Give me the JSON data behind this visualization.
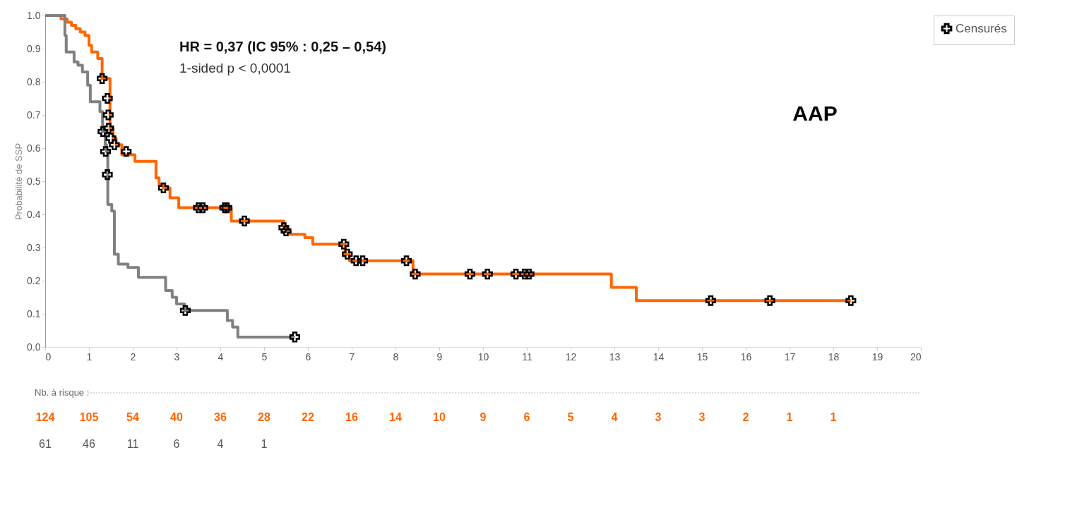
{
  "chart_data": {
    "type": "step",
    "ylabel": "Probabilité de SSP",
    "xlim": [
      0,
      20
    ],
    "xticks": [
      0,
      1,
      2,
      3,
      4,
      5,
      6,
      7,
      8,
      9,
      10,
      11,
      12,
      13,
      14,
      15,
      16,
      17,
      18,
      19,
      20
    ],
    "ylim": [
      0,
      1
    ],
    "yticks": [
      {
        "value": 0,
        "label": "0.0"
      },
      {
        "value": 0.1,
        "label": "0.1"
      },
      {
        "value": 0.2,
        "label": "0.2"
      },
      {
        "value": 0.3,
        "label": "0.3"
      },
      {
        "value": 0.4,
        "label": "0.4"
      },
      {
        "value": 0.5,
        "label": "0.5"
      },
      {
        "value": 0.6,
        "label": "0.6"
      },
      {
        "value": 0.7,
        "label": "0.7"
      },
      {
        "value": 0.8,
        "label": "0.8"
      },
      {
        "value": 0.9,
        "label": "0.9"
      },
      {
        "value": 1,
        "label": "1.0"
      }
    ],
    "grid": false,
    "legend": "right",
    "series": [
      {
        "color": "#ff6600",
        "x": [
          0,
          0.36,
          0.5,
          0.6,
          0.7,
          0.8,
          0.91,
          1.0,
          1.06,
          1.2,
          1.3,
          1.4,
          1.48,
          1.55,
          1.62,
          1.75,
          2.05,
          2.53,
          2.6,
          2.7,
          2.85,
          3.05,
          4.25,
          5.45,
          5.5,
          5.6,
          5.93,
          6.11,
          6.85,
          6.95,
          8.4,
          12.93,
          13.5,
          18.4
        ],
        "values": [
          1.0,
          0.99,
          0.98,
          0.97,
          0.96,
          0.95,
          0.94,
          0.91,
          0.89,
          0.87,
          0.81,
          0.81,
          0.66,
          0.63,
          0.61,
          0.58,
          0.56,
          0.51,
          0.49,
          0.48,
          0.45,
          0.42,
          0.38,
          0.36,
          0.35,
          0.34,
          0.33,
          0.31,
          0.28,
          0.26,
          0.22,
          0.18,
          0.14,
          0.14
        ]
      },
      {
        "color": "#808080",
        "x": [
          0,
          0.45,
          0.48,
          0.66,
          0.75,
          0.85,
          0.97,
          1.03,
          1.25,
          1.31,
          1.37,
          1.4,
          1.43,
          1.52,
          1.58,
          1.67,
          1.89,
          2.13,
          2.75,
          2.9,
          3.0,
          3.18,
          4.16,
          4.28,
          4.4,
          5.7
        ],
        "values": [
          1.0,
          0.94,
          0.89,
          0.86,
          0.85,
          0.83,
          0.79,
          0.74,
          0.71,
          0.65,
          0.61,
          0.59,
          0.43,
          0.41,
          0.28,
          0.25,
          0.24,
          0.21,
          0.17,
          0.15,
          0.13,
          0.11,
          0.08,
          0.06,
          0.03,
          0.03
        ]
      },
      {
        "type": "scatter",
        "name": "Censurés",
        "color": "#000000",
        "marker": "cross",
        "x": [
          1.3,
          1.42,
          1.44,
          1.45,
          1.5,
          1.58,
          1.85,
          2.7,
          3.5,
          3.6,
          4.1,
          4.15,
          4.55,
          5.45,
          5.5,
          6.82,
          6.9,
          7.1,
          7.25,
          8.25,
          8.45,
          9.7,
          10.1,
          10.75,
          10.95,
          11.05,
          15.2,
          16.55,
          18.4,
          1.32,
          1.38,
          1.42,
          3.2,
          5.7
        ],
        "values": [
          0.81,
          0.75,
          0.7,
          0.66,
          0.63,
          0.61,
          0.59,
          0.48,
          0.42,
          0.42,
          0.42,
          0.42,
          0.38,
          0.36,
          0.35,
          0.31,
          0.28,
          0.26,
          0.26,
          0.26,
          0.22,
          0.22,
          0.22,
          0.22,
          0.22,
          0.22,
          0.14,
          0.14,
          0.14,
          0.65,
          0.59,
          0.52,
          0.11,
          0.03
        ]
      }
    ],
    "annotations": [
      "HR = 0,37 (IC 95% : 0,25 – 0,54)",
      "1-sided p < 0,0001",
      "AAP",
      "Nb. à risque :",
      "124 105 54 40 36 28 22 16 14 10 9 6 5 4 3 3 2 1 1",
      "61 46 11 6 4 1"
    ]
  }
}
